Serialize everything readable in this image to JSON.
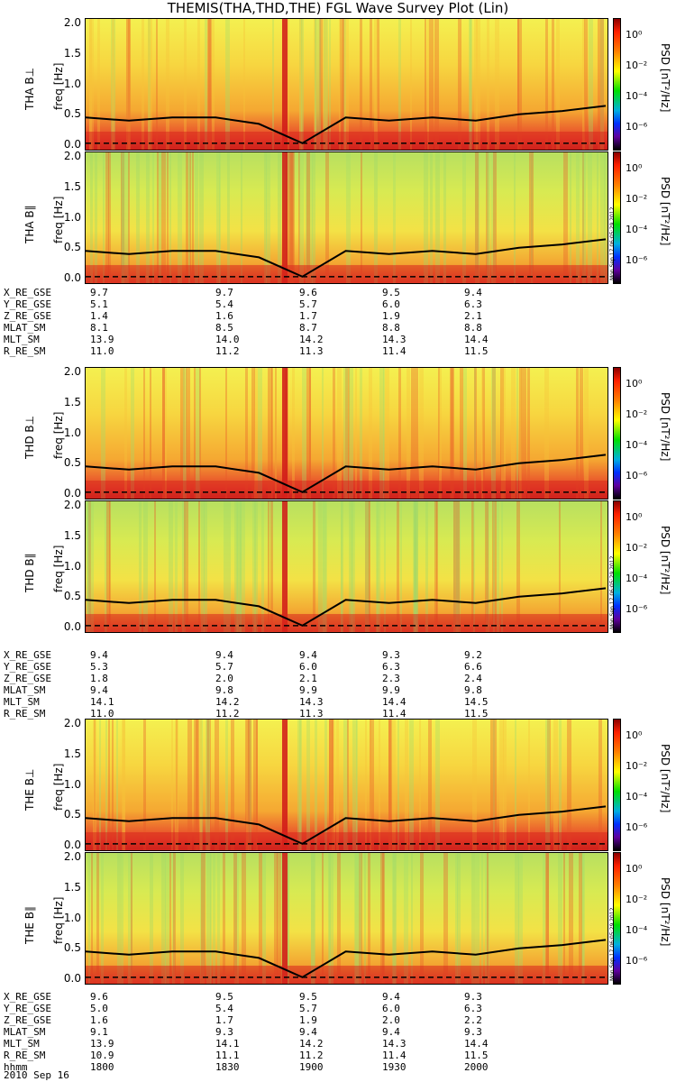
{
  "title": "THEMIS(THA,THD,THE) FGL Wave Survey Plot (Lin)",
  "freq_axis": {
    "label": "freq [Hz]",
    "ticks": [
      "2.0",
      "1.5",
      "1.0",
      "0.5",
      "0.0"
    ]
  },
  "color_axis": {
    "label": "PSD [nT²/Hz]",
    "ticks": [
      "10⁰",
      "10⁻²",
      "10⁻⁴",
      "10⁻⁶"
    ]
  },
  "stamp": "Mon Sep 17 06:05:29 2012",
  "probes": [
    {
      "perp": "THA B⊥",
      "para": "THA B∥",
      "eph": [
        [
          "X_RE_GSE",
          "9.7",
          "9.7",
          "9.6",
          "9.5",
          "9.4"
        ],
        [
          "Y_RE_GSE",
          "5.1",
          "5.4",
          "5.7",
          "6.0",
          "6.3"
        ],
        [
          "Z_RE_GSE",
          "1.4",
          "1.6",
          "1.7",
          "1.9",
          "2.1"
        ],
        [
          "MLAT_SM",
          "8.1",
          "8.5",
          "8.7",
          "8.8",
          "8.8"
        ],
        [
          "MLT_SM",
          "13.9",
          "14.0",
          "14.2",
          "14.3",
          "14.4"
        ],
        [
          "R_RE_SM",
          "11.0",
          "11.2",
          "11.3",
          "11.4",
          "11.5"
        ]
      ]
    },
    {
      "perp": "THD B⊥",
      "para": "THD B∥",
      "eph": [
        [
          "X_RE_GSE",
          "9.4",
          "9.4",
          "9.4",
          "9.3",
          "9.2"
        ],
        [
          "Y_RE_GSE",
          "5.3",
          "5.7",
          "6.0",
          "6.3",
          "6.6"
        ],
        [
          "Z_RE_GSE",
          "1.8",
          "2.0",
          "2.1",
          "2.3",
          "2.4"
        ],
        [
          "MLAT_SM",
          "9.4",
          "9.8",
          "9.9",
          "9.9",
          "9.8"
        ],
        [
          "MLT_SM",
          "14.1",
          "14.2",
          "14.3",
          "14.4",
          "14.5"
        ],
        [
          "R_RE_SM",
          "11.0",
          "11.2",
          "11.3",
          "11.4",
          "11.5"
        ]
      ]
    },
    {
      "perp": "THE B⊥",
      "para": "THE B∥",
      "eph": [
        [
          "X_RE_GSE",
          "9.6",
          "9.5",
          "9.5",
          "9.4",
          "9.3"
        ],
        [
          "Y_RE_GSE",
          "5.0",
          "5.4",
          "5.7",
          "6.0",
          "6.3"
        ],
        [
          "Z_RE_GSE",
          "1.6",
          "1.7",
          "1.9",
          "2.0",
          "2.2"
        ],
        [
          "MLAT_SM",
          "9.1",
          "9.3",
          "9.4",
          "9.4",
          "9.3"
        ],
        [
          "MLT_SM",
          "13.9",
          "14.1",
          "14.2",
          "14.3",
          "14.4"
        ],
        [
          "R_RE_SM",
          "10.9",
          "11.1",
          "11.2",
          "11.4",
          "11.5"
        ],
        [
          "hhmm",
          "1800",
          "1830",
          "1900",
          "1930",
          "2000"
        ]
      ]
    }
  ],
  "date": "2010 Sep 16",
  "chart_data": {
    "type": "heatmap",
    "title": "THEMIS(THA,THD,THE) FGL Wave Survey Plot (Lin)",
    "ylabel": "freq [Hz]",
    "ylim": [
      0,
      2.0
    ],
    "colorbar_label": "PSD [nT²/Hz]",
    "color_scale": "log",
    "clim": [
      1e-07,
      10.0
    ],
    "x_time_ticks": [
      "1800",
      "1830",
      "1900",
      "1930",
      "2000"
    ],
    "series": [
      {
        "name": "THA B⊥",
        "probe": "THA",
        "component": "perp"
      },
      {
        "name": "THA B∥",
        "probe": "THA",
        "component": "para"
      },
      {
        "name": "THD B⊥",
        "probe": "THD",
        "component": "perp"
      },
      {
        "name": "THD B∥",
        "probe": "THD",
        "component": "para"
      },
      {
        "name": "THE B⊥",
        "probe": "THE",
        "component": "perp"
      },
      {
        "name": "THE B∥",
        "probe": "THE",
        "component": "para"
      }
    ],
    "gyro_curve_hz": {
      "time": [
        "1800",
        "1810",
        "1820",
        "1830",
        "1840",
        "1850",
        "1900",
        "1910",
        "1920",
        "1930",
        "1940",
        "1950",
        "2000"
      ],
      "values": [
        0.5,
        0.45,
        0.5,
        0.5,
        0.4,
        0.1,
        0.5,
        0.45,
        0.5,
        0.45,
        0.55,
        0.6,
        0.68
      ]
    }
  }
}
